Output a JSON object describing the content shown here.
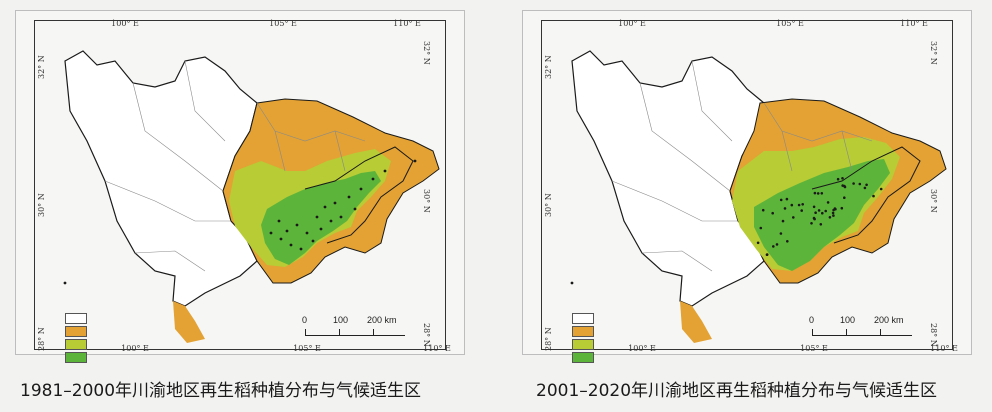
{
  "panels": [
    {
      "caption": "1981–2000年川渝地区再生稻种植分布与气候适生区",
      "top_ticks": [
        "100° E",
        "105° E",
        "110° E"
      ],
      "bottom_ticks": [
        "100° E",
        "105° E",
        "110° E"
      ],
      "left_ticks": [
        "32° N",
        "30° N",
        "28° N"
      ],
      "right_ticks": [
        "32° N",
        "30° N",
        "28° N"
      ],
      "scale": {
        "labels": [
          "0",
          "100",
          "200 km"
        ]
      },
      "legend_colors": [
        "#ffffff",
        "#e3a233",
        "#b7cc35",
        "#5db43a"
      ]
    },
    {
      "caption": "2001–2020年川渝地区再生稻种植分布与气候适生区",
      "top_ticks": [
        "100° E",
        "105° E",
        "110° E"
      ],
      "bottom_ticks": [
        "100° E",
        "105° E",
        "110° E"
      ],
      "left_ticks": [
        "32° N",
        "30° N",
        "28° N"
      ],
      "right_ticks": [
        "32° N",
        "30° N",
        "28° N"
      ],
      "scale": {
        "labels": [
          "0",
          "100",
          "200 km"
        ]
      },
      "legend_colors": [
        "#ffffff",
        "#e3a233",
        "#b7cc35",
        "#5db43a"
      ]
    }
  ],
  "colors": {
    "unsuitable": "#ffffff",
    "low_suitability": "#e3a233",
    "medium_suitability": "#b7cc35",
    "high_suitability": "#5db43a",
    "province_outline": "#1a1a1a",
    "county_lines": "#8a8a8a",
    "planting_points": "#1a1a1a"
  },
  "planting_points": [
    {
      "period": "1981–2000",
      "count_shown": "sparse"
    },
    {
      "period": "2001–2020",
      "count_shown": "dense"
    }
  ]
}
